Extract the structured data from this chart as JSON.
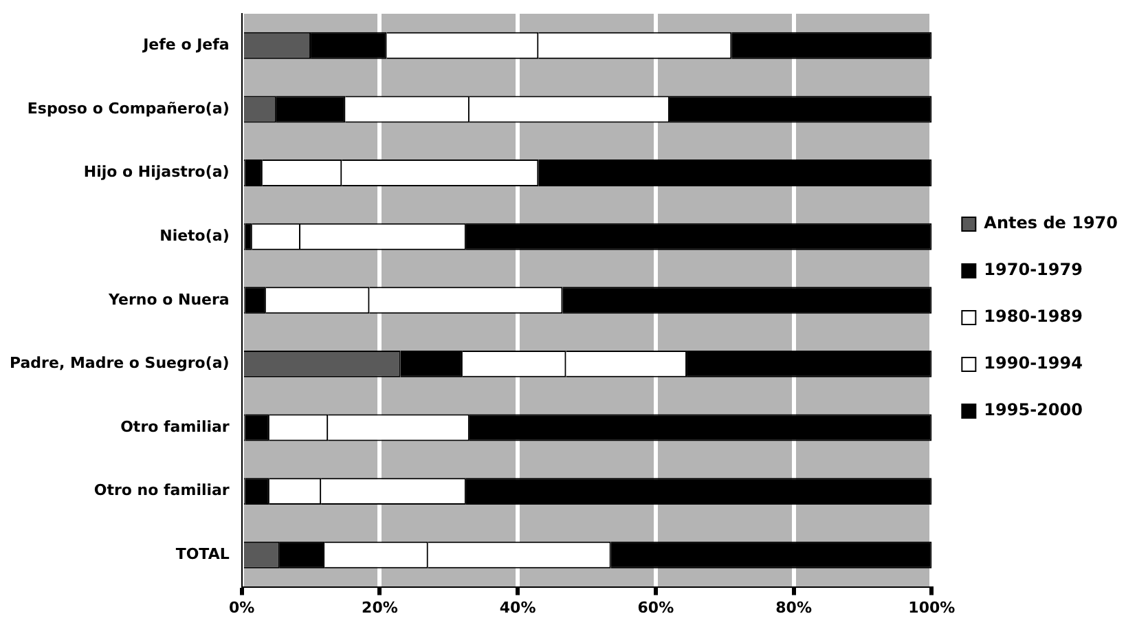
{
  "chart_data": {
    "type": "bar",
    "orientation": "horizontal",
    "stacked": true,
    "categories": [
      "Jefe o Jefa",
      "Esposo o Compañero(a)",
      "Hijo o Hijastro(a)",
      "Nieto(a)",
      "Yerno o Nuera",
      "Padre, Madre o Suegro(a)",
      "Otro familiar",
      "Otro no familiar",
      "TOTAL"
    ],
    "series": [
      {
        "name": "Antes de 1970",
        "color": "#5a5a5a",
        "values": [
          10,
          5,
          0.5,
          0.5,
          0.5,
          23,
          0.5,
          0.5,
          5.5
        ]
      },
      {
        "name": "1970-1979",
        "color": "#000000",
        "values": [
          11,
          10,
          2.5,
          1,
          3,
          9,
          3.5,
          3.5,
          6.5
        ]
      },
      {
        "name": "1980-1989",
        "color": "#ffffff",
        "values": [
          22,
          18,
          11.5,
          7,
          15,
          15,
          8.5,
          7.5,
          15
        ]
      },
      {
        "name": "1990-1994",
        "color": "#ffffff",
        "values": [
          28,
          29,
          28.5,
          24,
          28,
          17.5,
          20.5,
          21,
          26.5
        ]
      },
      {
        "name": "1995-2000",
        "color": "#000000",
        "values": [
          29,
          38,
          57,
          67.5,
          53.5,
          35.5,
          67,
          67.5,
          46.5
        ]
      }
    ],
    "xlim": [
      0,
      100
    ],
    "xticks": [
      {
        "value": 0,
        "label": "0%"
      },
      {
        "value": 20,
        "label": "20%"
      },
      {
        "value": 40,
        "label": "40%"
      },
      {
        "value": 60,
        "label": "60%"
      },
      {
        "value": 80,
        "label": "80%"
      },
      {
        "value": 100,
        "label": "100%"
      }
    ],
    "grid": "x",
    "legend": "right"
  }
}
